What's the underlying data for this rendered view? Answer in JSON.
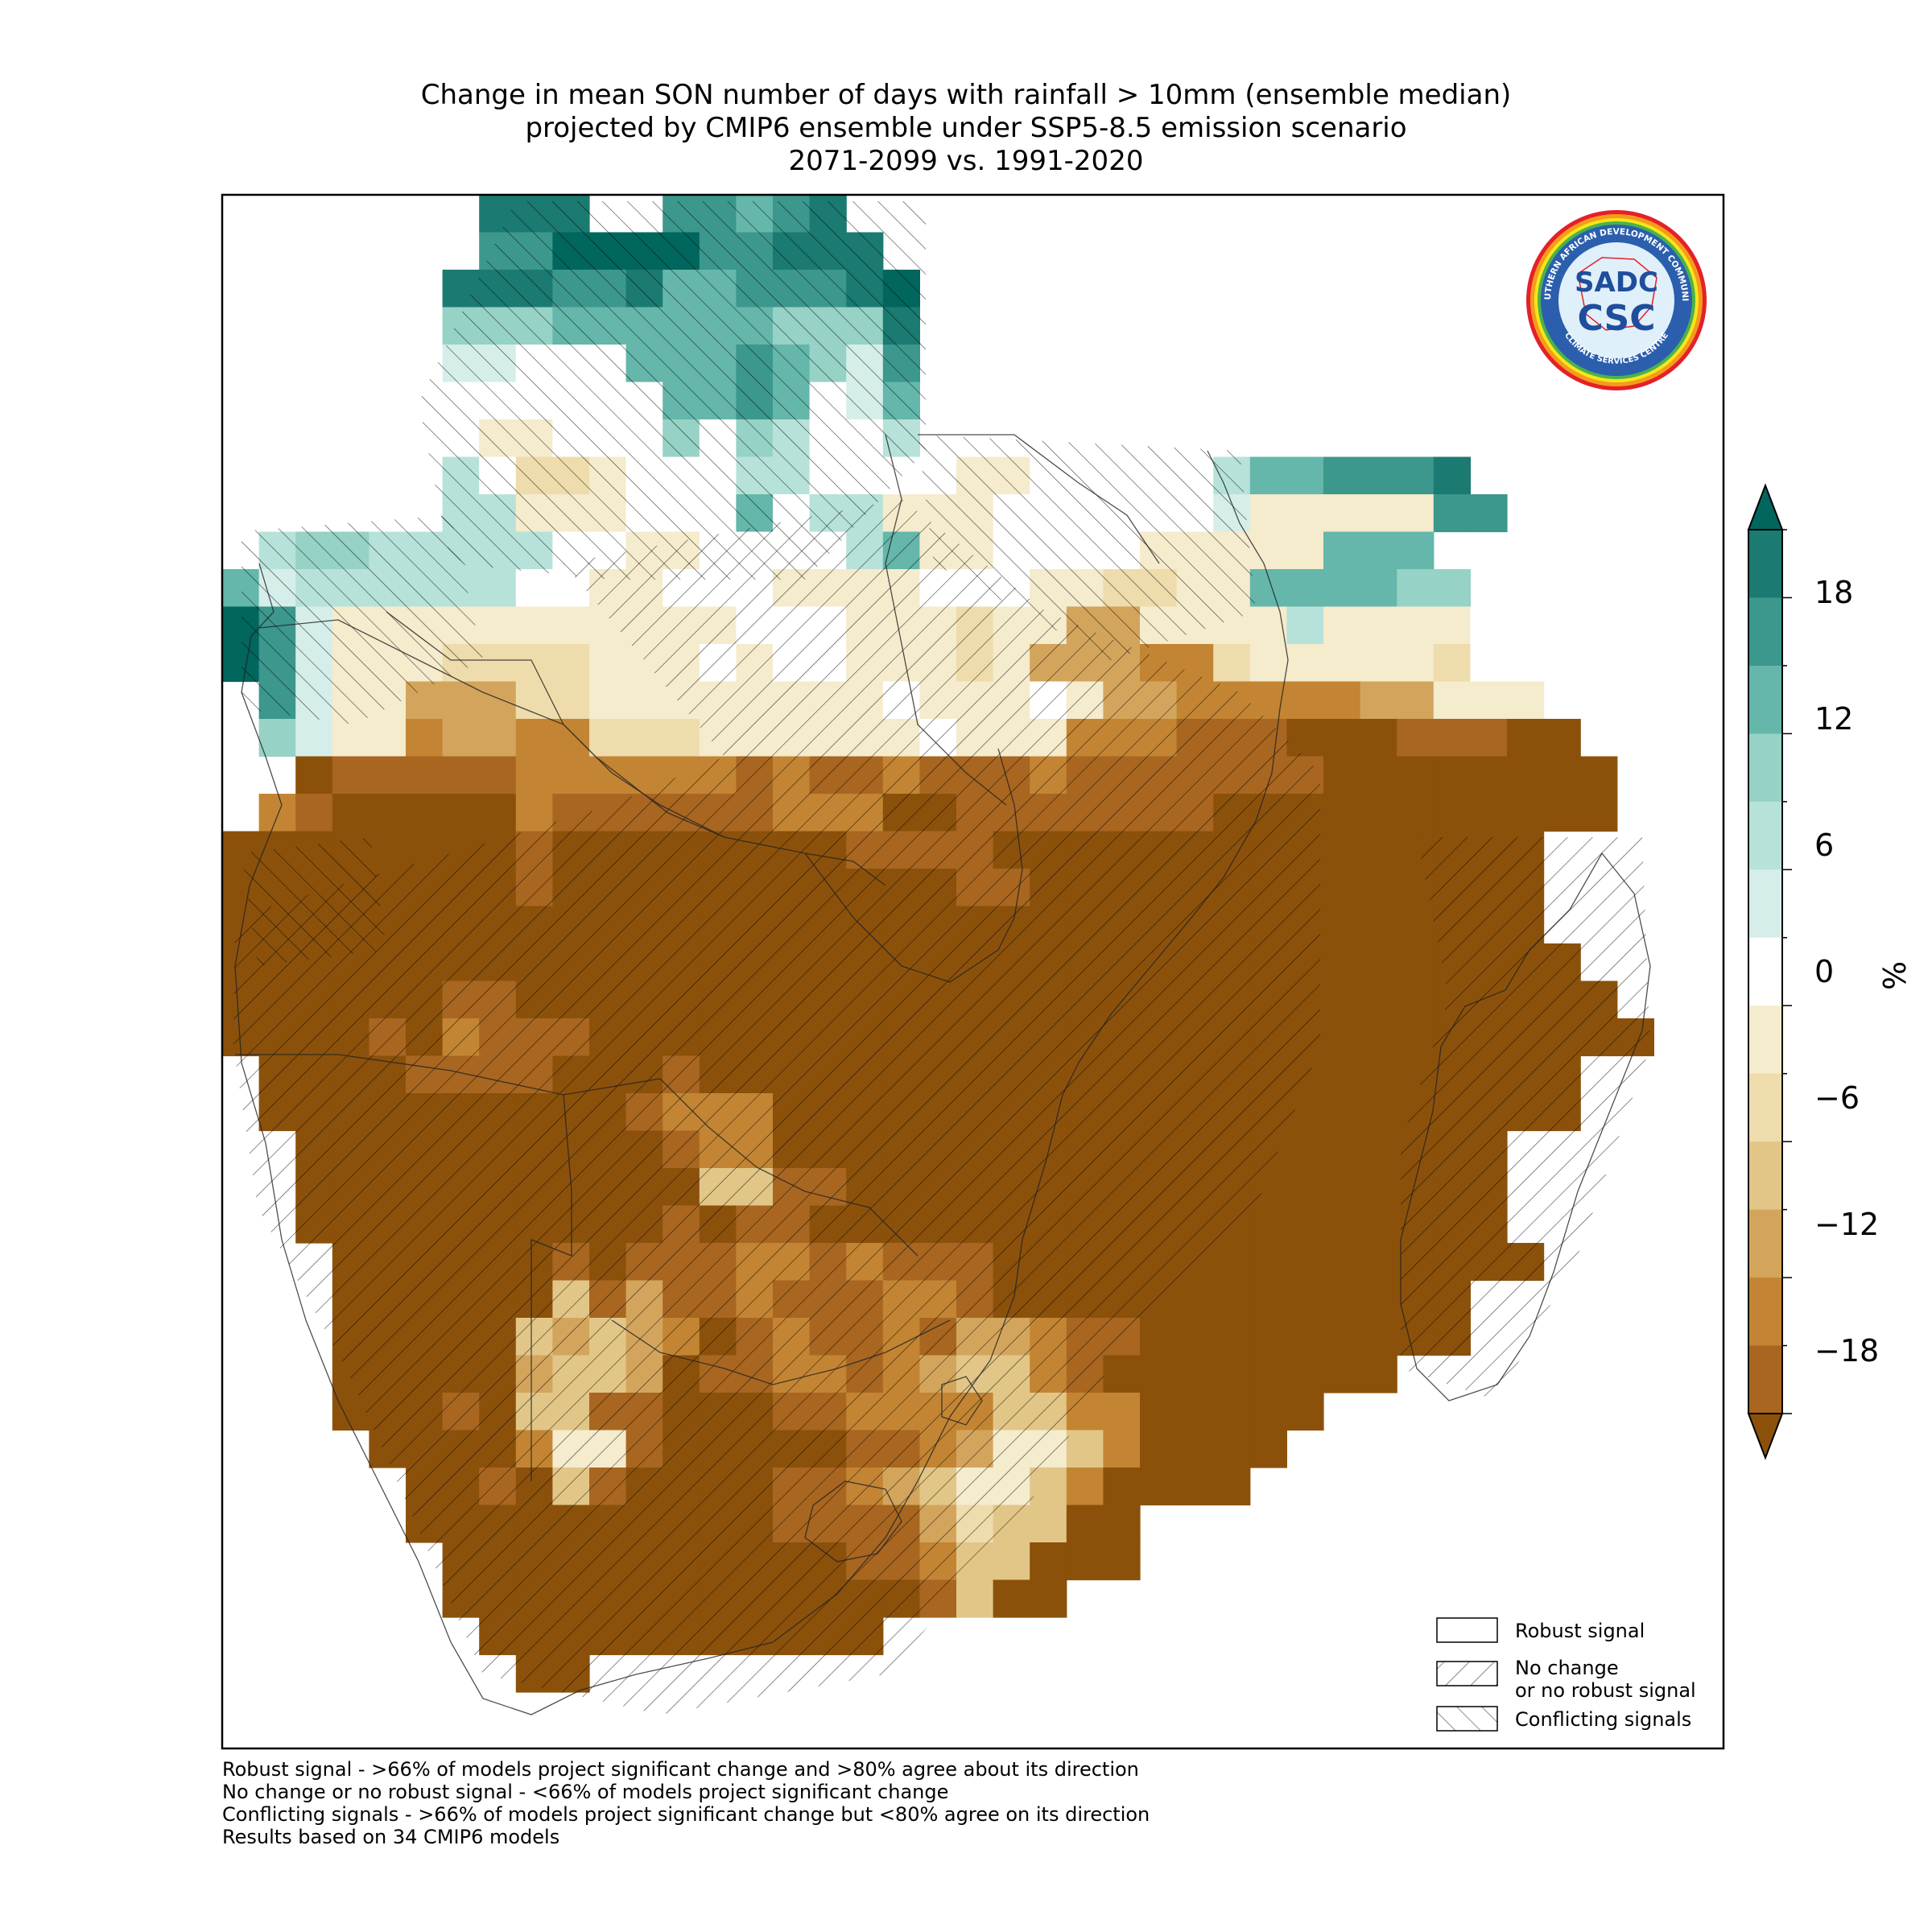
{
  "title": {
    "line1": "Change in mean SON number of days with rainfall > 10mm (ensemble median)",
    "line2": "projected by CMIP6 ensemble under SSP5-8.5 emission scenario",
    "line3": "2071-2099 vs. 1991-2020"
  },
  "logo": {
    "ring_text": "SOUTHERN AFRICAN DEVELOPMENT COMMUNITY",
    "bottom_text": "CLIMATE SERVICES CENTRE",
    "mark_top": "SADC",
    "mark_bottom": "CSC"
  },
  "colorbar": {
    "unit": "%",
    "ticks": [
      "18",
      "12",
      "6",
      "0",
      "−6",
      "−12",
      "−18"
    ],
    "bins": [
      {
        "range": "> 21",
        "color": "#01665e"
      },
      {
        "range": "18 to 21",
        "color": "#1b7a71"
      },
      {
        "range": "15 to 18",
        "color": "#3c978d"
      },
      {
        "range": "12 to 15",
        "color": "#64b7aa"
      },
      {
        "range": "9 to 12",
        "color": "#96d2c5"
      },
      {
        "range": "6 to 9",
        "color": "#b7e2da"
      },
      {
        "range": "3 to 6",
        "color": "#d6eeea"
      },
      {
        "range": "-3 to 3",
        "color": "#ffffff"
      },
      {
        "range": "-6 to -3",
        "color": "#f5ebcd"
      },
      {
        "range": "-9 to -6",
        "color": "#eedcac"
      },
      {
        "range": "-12 to -9",
        "color": "#e2c687"
      },
      {
        "range": "-15 to -12",
        "color": "#d3a55c"
      },
      {
        "range": "-18 to -15",
        "color": "#c38533"
      },
      {
        "range": "-21 to -18",
        "color": "#a86620"
      },
      {
        "range": "< -21",
        "color": "#8b510b"
      }
    ]
  },
  "legend": {
    "robust": "Robust signal",
    "no_change_1": "No change",
    "no_change_2": "or no robust signal",
    "conflicting": "Conflicting signals"
  },
  "footnotes": [
    "Robust signal - >66% of models project significant change and >80% agree about its direction",
    "No change or no robust signal - <66% of models project significant change",
    "Conflicting signals - >66% of models project significant change but <80% agree on its direction",
    "Results based on 34 CMIP6 models"
  ]
}
